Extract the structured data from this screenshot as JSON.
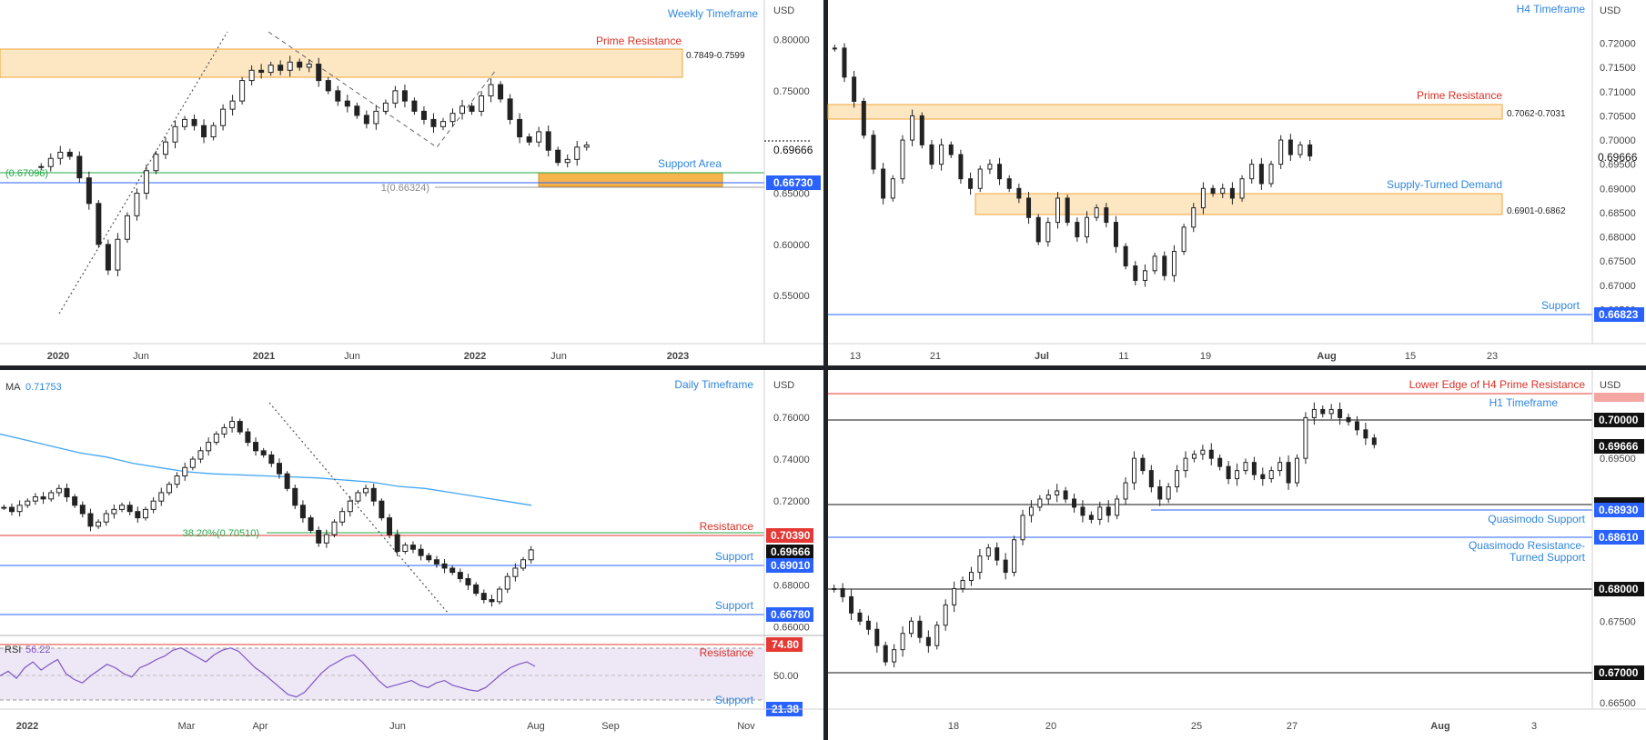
{
  "chart_data": [
    {
      "id": "weekly",
      "type": "candlestick",
      "title": "Weekly Timeframe",
      "currency": "USD",
      "y_ticks": [
        "0.80000",
        "0.75000",
        "0.65000",
        "0.60000",
        "0.55000"
      ],
      "x_ticks": [
        "2020",
        "Jun",
        "2021",
        "Jun",
        "2022",
        "Jun",
        "2023"
      ],
      "ylim": [
        0.528,
        0.812
      ],
      "price_tag": "0.69666",
      "zones": [
        {
          "label": "Prime Resistance",
          "range_text": "0.7849-0.7599",
          "from": 0.7849,
          "to": 0.7599,
          "color": "#f59e0b"
        },
        {
          "label": "Support Area",
          "from": 0.6709,
          "to": 0.6605,
          "color": "#f59e0b"
        }
      ],
      "levels": [
        {
          "label": "Support Area",
          "value": 0.6673,
          "tag": "0.66730",
          "color": "#2962ff"
        },
        {
          "label": "0.6709",
          "value": 0.6709,
          "color": "#22a846"
        },
        {
          "label": "1(0.66324)",
          "value": 0.66324,
          "color": "#888888"
        }
      ],
      "fib_label": "1(0.66324)",
      "partial_label": "(0.67096)",
      "series": [
        {
          "name": "AUD/USD weekly close",
          "values": [
            0.676,
            0.684,
            0.69,
            0.686,
            0.665,
            0.64,
            0.6,
            0.575,
            0.605,
            0.628,
            0.65,
            0.672,
            0.688,
            0.7,
            0.715,
            0.722,
            0.716,
            0.705,
            0.716,
            0.732,
            0.74,
            0.76,
            0.77,
            0.768,
            0.775,
            0.77,
            0.778,
            0.773,
            0.776,
            0.76,
            0.75,
            0.74,
            0.735,
            0.726,
            0.718,
            0.73,
            0.738,
            0.75,
            0.74,
            0.73,
            0.722,
            0.715,
            0.72,
            0.728,
            0.735,
            0.73,
            0.745,
            0.756,
            0.742,
            0.722,
            0.705,
            0.7,
            0.71,
            0.692,
            0.68,
            0.683,
            0.695,
            0.697
          ]
        }
      ]
    },
    {
      "id": "h4",
      "type": "candlestick",
      "title": "H4 Timeframe",
      "currency": "USD",
      "y_ticks": [
        "0.72000",
        "0.71500",
        "0.71000",
        "0.70500",
        "0.70000",
        "0.69500",
        "0.69000",
        "0.68500",
        "0.68000",
        "0.67500",
        "0.67000",
        "0.66500"
      ],
      "x_ticks": [
        "13",
        "21",
        "Jul",
        "11",
        "19",
        "Aug",
        "15",
        "23"
      ],
      "ylim": [
        0.6632,
        0.7233
      ],
      "price_tag": "0.69666",
      "zones": [
        {
          "label": "Prime Resistance",
          "range_text": "0.7062-0.7031",
          "from": 0.7062,
          "to": 0.7031,
          "color": "#f59e0b"
        },
        {
          "label": "Supply-Turned Demand",
          "range_text": "0.6901-0.6862",
          "from": 0.6901,
          "to": 0.6862,
          "color": "#f59e0b"
        }
      ],
      "levels": [
        {
          "label": "Support",
          "value": 0.66823,
          "tag": "0.66823",
          "color": "#2962ff"
        }
      ],
      "series": [
        {
          "name": "AUD/USD H4 close",
          "values": [
            0.719,
            0.713,
            0.708,
            0.701,
            0.694,
            0.688,
            0.692,
            0.7,
            0.705,
            0.699,
            0.695,
            0.699,
            0.697,
            0.692,
            0.69,
            0.694,
            0.695,
            0.692,
            0.69,
            0.688,
            0.684,
            0.679,
            0.683,
            0.688,
            0.683,
            0.68,
            0.684,
            0.686,
            0.683,
            0.678,
            0.674,
            0.671,
            0.673,
            0.676,
            0.672,
            0.677,
            0.682,
            0.686,
            0.69,
            0.689,
            0.69,
            0.688,
            0.692,
            0.695,
            0.691,
            0.695,
            0.7,
            0.697,
            0.699,
            0.6967
          ]
        }
      ]
    },
    {
      "id": "daily",
      "type": "candlestick",
      "title": "Daily Timeframe",
      "currency": "USD",
      "ma_label": "MA",
      "ma_value": "0.71753",
      "y_ticks": [
        "0.76000",
        "0.74000",
        "0.72000",
        "0.68000",
        "0.66000"
      ],
      "x_ticks": [
        "2022",
        "Mar",
        "Apr",
        "Jun",
        "Aug",
        "Sep",
        "Nov"
      ],
      "ylim": [
        0.6598,
        0.7682
      ],
      "price_tag": "0.69666",
      "fib_label": "38.20%(0.70510)",
      "levels": [
        {
          "label": "Resistance",
          "value": 0.7039,
          "tag": "0.70390",
          "color": "#e53935"
        },
        {
          "label": "Support",
          "value": 0.6901,
          "tag": "0.69010",
          "color": "#2962ff"
        },
        {
          "label": "Support",
          "value": 0.6678,
          "tag": "0.66780",
          "color": "#2962ff"
        }
      ],
      "series": [
        {
          "name": "AUD/USD daily close",
          "values": [
            0.717,
            0.715,
            0.718,
            0.72,
            0.722,
            0.721,
            0.724,
            0.726,
            0.722,
            0.718,
            0.714,
            0.708,
            0.71,
            0.714,
            0.716,
            0.718,
            0.715,
            0.712,
            0.716,
            0.72,
            0.724,
            0.728,
            0.732,
            0.736,
            0.74,
            0.744,
            0.748,
            0.752,
            0.755,
            0.758,
            0.753,
            0.748,
            0.744,
            0.742,
            0.738,
            0.733,
            0.726,
            0.718,
            0.712,
            0.706,
            0.7,
            0.704,
            0.71,
            0.715,
            0.72,
            0.724,
            0.726,
            0.72,
            0.712,
            0.704,
            0.696,
            0.699,
            0.697,
            0.694,
            0.692,
            0.69,
            0.688,
            0.686,
            0.683,
            0.68,
            0.676,
            0.673,
            0.672,
            0.678,
            0.684,
            0.688,
            0.692,
            0.6967
          ]
        },
        {
          "name": "MA",
          "values": [
            0.752,
            0.749,
            0.746,
            0.743,
            0.741,
            0.738,
            0.736,
            0.734,
            0.733,
            0.7325,
            0.732,
            0.7315,
            0.731,
            0.73,
            0.729,
            0.727,
            0.726,
            0.724,
            0.722,
            0.72,
            0.718
          ]
        }
      ]
    },
    {
      "id": "rsi",
      "type": "line",
      "title": "RSI",
      "rsi_label": "RSI",
      "rsi_value": "56.22",
      "y_ticks": [
        "50.00"
      ],
      "ylim": [
        18,
        78
      ],
      "levels": [
        {
          "label": "Resistance",
          "value": 74.8,
          "tag": "74.80",
          "color": "#e53935"
        },
        {
          "label": "Support",
          "value": 21.38,
          "tag": "21.38",
          "color": "#2962ff"
        },
        {
          "label": "70",
          "value": 70,
          "color": "#999999"
        },
        {
          "label": "30",
          "value": 30,
          "color": "#999999"
        }
      ],
      "series": [
        {
          "name": "RSI",
          "values": [
            48,
            52,
            46,
            55,
            60,
            53,
            58,
            62,
            50,
            45,
            42,
            48,
            53,
            58,
            55,
            50,
            47,
            55,
            58,
            62,
            65,
            70,
            72,
            68,
            64,
            60,
            66,
            70,
            72,
            69,
            62,
            55,
            50,
            44,
            38,
            32,
            30,
            34,
            42,
            50,
            56,
            60,
            64,
            66,
            60,
            52,
            44,
            38,
            40,
            42,
            44,
            40,
            38,
            42,
            44,
            40,
            38,
            36,
            35,
            38,
            44,
            50,
            55,
            58,
            60,
            56.22
          ]
        }
      ]
    },
    {
      "id": "h1",
      "type": "line",
      "title": "H1 Timeframe",
      "currency": "USD",
      "y_ticks": [
        "0.69500",
        "0.67500",
        "0.66500"
      ],
      "x_ticks": [
        "18",
        "20",
        "25",
        "27",
        "Aug",
        "3"
      ],
      "ylim": [
        0.6642,
        0.7044
      ],
      "price_tag": "0.69666",
      "levels": [
        {
          "label": "Lower Edge of H4 Prime Resistance",
          "value": 0.7031,
          "tag": "0.70310",
          "color": "#e53935"
        },
        {
          "label": "0.70000",
          "value": 0.7,
          "tag": "0.70000",
          "color": "#000000"
        },
        {
          "label": "0.69000",
          "value": 0.69,
          "tag": "0.69000",
          "color": "#000000"
        },
        {
          "label": "Quasimodo Support",
          "value": 0.6893,
          "tag": "0.68930",
          "color": "#2962ff"
        },
        {
          "label": "Quasimodo Resistance-Turned Support",
          "value": 0.6861,
          "tag": "0.68610",
          "color": "#2962ff"
        },
        {
          "label": "0.68000",
          "value": 0.68,
          "tag": "0.68000",
          "color": "#000000"
        },
        {
          "label": "0.67000",
          "value": 0.67,
          "tag": "0.67000",
          "color": "#000000"
        }
      ],
      "series": [
        {
          "name": "AUD/USD H1 close",
          "values": [
            0.679,
            0.678,
            0.676,
            0.675,
            0.674,
            0.672,
            0.67,
            0.6715,
            0.6735,
            0.675,
            0.673,
            0.672,
            0.6745,
            0.677,
            0.679,
            0.68,
            0.681,
            0.683,
            0.684,
            0.6825,
            0.681,
            0.685,
            0.688,
            0.689,
            0.69,
            0.6905,
            0.691,
            0.69,
            0.689,
            0.688,
            0.6875,
            0.689,
            0.688,
            0.69,
            0.692,
            0.695,
            0.6935,
            0.6915,
            0.69,
            0.6915,
            0.6935,
            0.695,
            0.6955,
            0.696,
            0.695,
            0.694,
            0.6925,
            0.6935,
            0.6945,
            0.693,
            0.6925,
            0.6935,
            0.6945,
            0.692,
            0.695,
            0.7,
            0.701,
            0.7005,
            0.701,
            0.7,
            0.6995,
            0.6985,
            0.6975,
            0.6967
          ]
        }
      ]
    }
  ]
}
